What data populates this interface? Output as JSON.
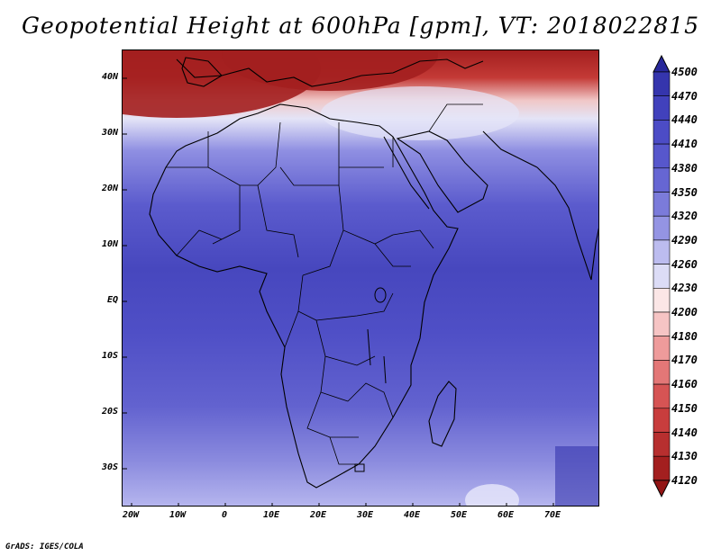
{
  "title": "Geopotential Height at 600hPa [gpm], VT: 2018022815",
  "lat_labels": [
    "40N",
    "30N",
    "20N",
    "10N",
    "EQ",
    "10S",
    "20S",
    "30S"
  ],
  "lon_labels": [
    "20W",
    "10W",
    "0",
    "10E",
    "20E",
    "30E",
    "40E",
    "50E",
    "60E",
    "70E"
  ],
  "colorbar": {
    "labels": [
      "4500",
      "4470",
      "4440",
      "4410",
      "4380",
      "4350",
      "4320",
      "4290",
      "4260",
      "4230",
      "4200",
      "4180",
      "4170",
      "4160",
      "4150",
      "4140",
      "4130",
      "4120"
    ],
    "colors": [
      "#28289b",
      "#3535ad",
      "#4141bc",
      "#4c4cc6",
      "#5757cc",
      "#6666d3",
      "#7b7bda",
      "#9494e3",
      "#bcbcef",
      "#dcdcf6",
      "#fbe6e6",
      "#f6c4c4",
      "#ee9b9b",
      "#e37777",
      "#d65454",
      "#c83d3d",
      "#b72f2f",
      "#a31f1f",
      "#931515"
    ]
  },
  "credit": "GrADS: IGES/COLA"
}
